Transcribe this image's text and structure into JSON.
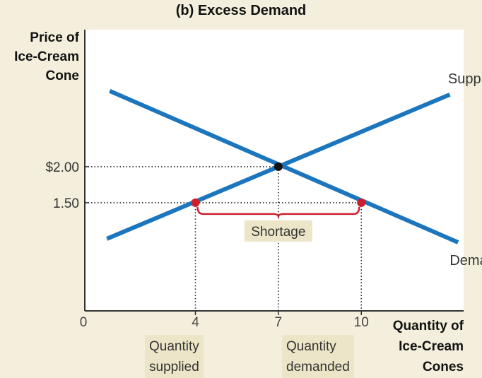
{
  "title": "(b) Excess Demand",
  "ylabel": [
    "Price of",
    "Ice-Cream",
    "Cone"
  ],
  "xlabel": [
    "Quantity of",
    "Ice-Cream",
    "Cones"
  ],
  "origin_label": "0",
  "quantity_supplied": [
    "Quantity",
    "supplied"
  ],
  "quantity_demanded": [
    "Quantity",
    "demanded"
  ],
  "colors": {
    "background": "#f3efdc",
    "plot_bg": "#ffffff",
    "curve": "#1c76be",
    "points": "#cc1f2d",
    "equilibrium": "#111111",
    "bracket": "#cc1f2d",
    "label_box": "#ece5c7"
  },
  "chart_data": {
    "type": "line",
    "title": "(b) Excess Demand",
    "xlabel": "Quantity of Ice-Cream Cones",
    "ylabel": "Price of Ice-Cream Cone",
    "xlim": [
      0,
      13.7
    ],
    "ylim": [
      0,
      3.9
    ],
    "x_ticks": [
      {
        "value": 4,
        "label": "4"
      },
      {
        "value": 7,
        "label": "7"
      },
      {
        "value": 10,
        "label": "10"
      }
    ],
    "y_ticks": [
      {
        "value": 2.0,
        "label": "$2.00"
      },
      {
        "value": 1.5,
        "label": "1.50"
      }
    ],
    "grid": false,
    "series": [
      {
        "name": "Supply",
        "x": [
          0.8,
          13.2
        ],
        "y": [
          1.0,
          3.0
        ]
      },
      {
        "name": "Demand",
        "x": [
          0.9,
          13.5
        ],
        "y": [
          3.05,
          0.95
        ]
      }
    ],
    "points": [
      {
        "name": "equilibrium",
        "x": 7,
        "y": 2.0
      },
      {
        "name": "quantity-supplied-point",
        "x": 4,
        "y": 1.5
      },
      {
        "name": "quantity-demanded-point",
        "x": 10,
        "y": 1.5
      }
    ],
    "annotations": [
      {
        "text": "Shortage",
        "x_from": 4,
        "x_to": 10,
        "y": 1.5
      }
    ]
  }
}
